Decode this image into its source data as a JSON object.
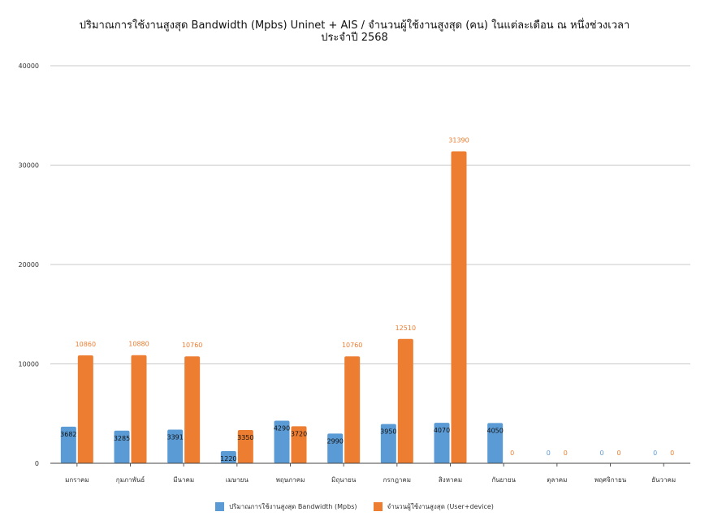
{
  "chart_data": {
    "type": "bar",
    "title_line1": "ปริมาณการใช้งานสูงสุด Bandwidth (Mpbs) Uninet + AIS / จำนวนผู้ใช้งานสูงสุด (คน) ในแต่ละเดือน ณ หนึ่งช่วงเวลา",
    "title_line2": "ประจำปี 2568",
    "categories": [
      "มกราคม",
      "กุมภาพันธ์",
      "มีนาคม",
      "เมษายน",
      "พฤษภาคม",
      "มิถุนายน",
      "กรกฎาคม",
      "สิงหาคม",
      "กันยายน",
      "ตุลาคม",
      "พฤศจิกายน",
      "ธันวาคม"
    ],
    "series": [
      {
        "name": "ปริมาณการใช้งานสูงสุด Bandwidth (Mpbs)",
        "color": "#5b9bd5",
        "label_color": "#111111",
        "values": [
          3682,
          3285,
          3391,
          1220,
          4290,
          2990,
          3950,
          4070,
          4050,
          0,
          0,
          0
        ]
      },
      {
        "name": "จำนวนผู้ใช้งานสูงสุด (User+device)",
        "color": "#ed7d31",
        "label_color": "#ed7d31",
        "values": [
          10860,
          10880,
          10760,
          3350,
          3720,
          10760,
          12510,
          31390,
          0,
          0,
          0,
          0
        ]
      }
    ],
    "zero_label_color": "#5b9bd5",
    "ylim": [
      0,
      40000
    ],
    "yticks": [
      0,
      10000,
      20000,
      30000,
      40000
    ],
    "xlabel": "",
    "ylabel": "",
    "grid": true,
    "legend": "bottom"
  }
}
